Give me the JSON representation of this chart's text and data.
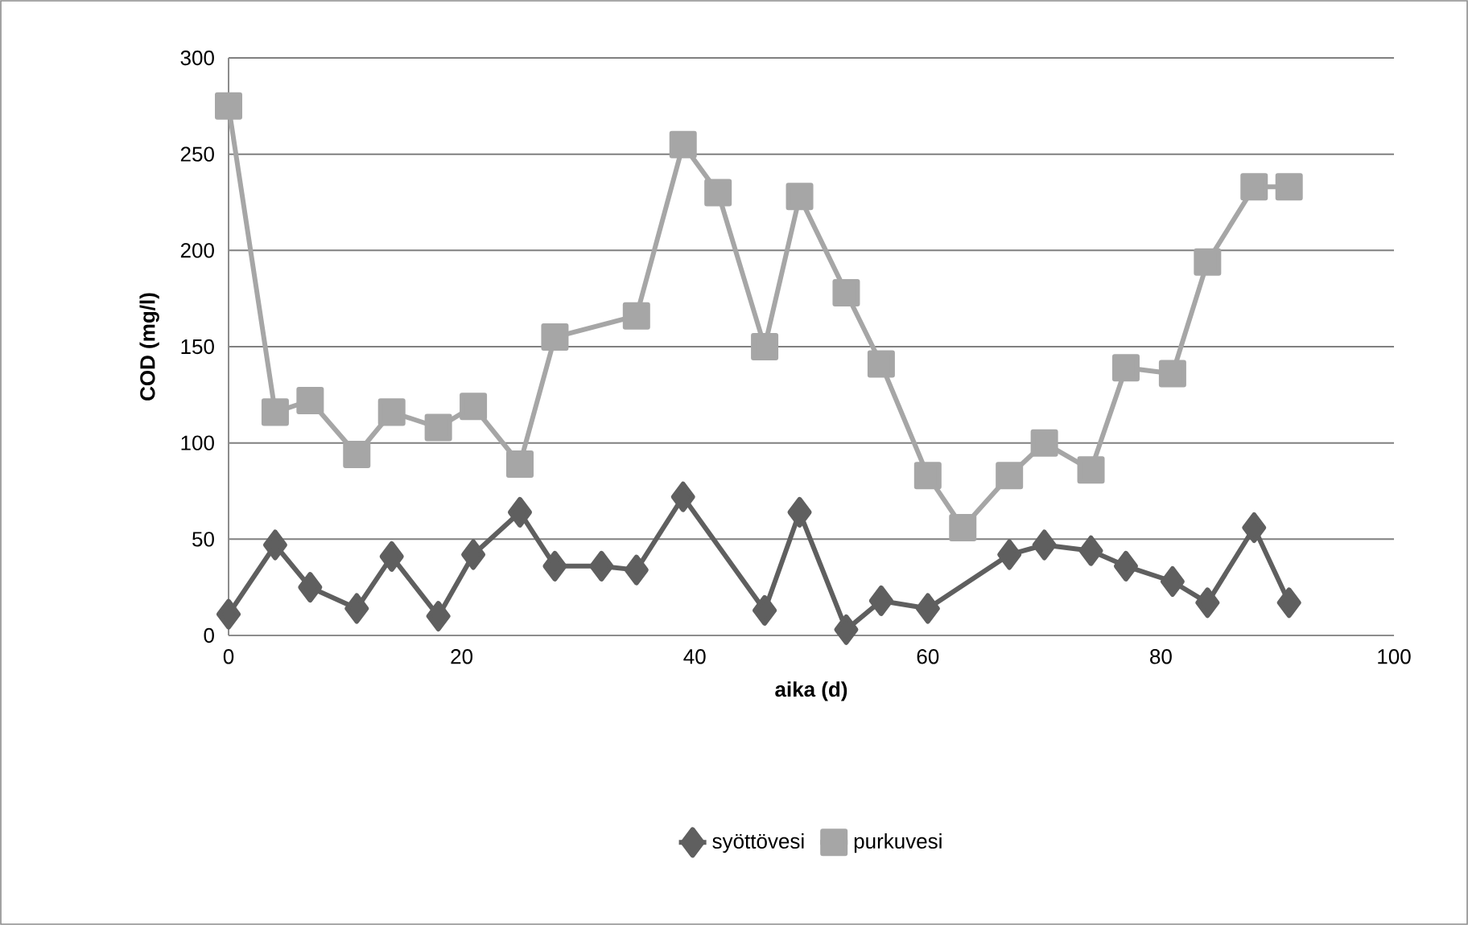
{
  "chart_data": {
    "type": "line",
    "xlabel": "aika (d)",
    "ylabel": "COD (mg/l)",
    "xlim": [
      0,
      100
    ],
    "xticks": [
      0,
      20,
      40,
      60,
      80,
      100
    ],
    "ylim": [
      0,
      300
    ],
    "yticks": [
      0,
      50,
      100,
      150,
      200,
      250,
      300
    ],
    "grid": "y",
    "legend": "bottom",
    "series": [
      {
        "name": "syöttövesi",
        "color": "#5f5f5f",
        "marker": "diamond",
        "x": [
          0,
          4,
          7,
          11,
          14,
          18,
          21,
          25,
          28,
          32,
          35,
          39,
          46,
          49,
          53,
          56,
          60,
          67,
          70,
          74,
          77,
          81,
          84,
          88,
          91
        ],
        "values": [
          11,
          47,
          25,
          14,
          41,
          10,
          42,
          64,
          36,
          36,
          34,
          72,
          13,
          64,
          3,
          18,
          14,
          42,
          47,
          44,
          36,
          28,
          17,
          56,
          17
        ]
      },
      {
        "name": "purkuvesi",
        "color": "#a6a6a6",
        "marker": "square",
        "x": [
          0,
          4,
          7,
          11,
          14,
          18,
          21,
          25,
          28,
          35,
          39,
          42,
          46,
          49,
          53,
          56,
          60,
          63,
          67,
          70,
          74,
          77,
          81,
          84,
          88,
          91
        ],
        "values": [
          275,
          116,
          122,
          94,
          116,
          108,
          119,
          89,
          155,
          166,
          255,
          230,
          150,
          228,
          178,
          141,
          83,
          56,
          83,
          100,
          86,
          139,
          136,
          194,
          233,
          233
        ]
      }
    ]
  }
}
